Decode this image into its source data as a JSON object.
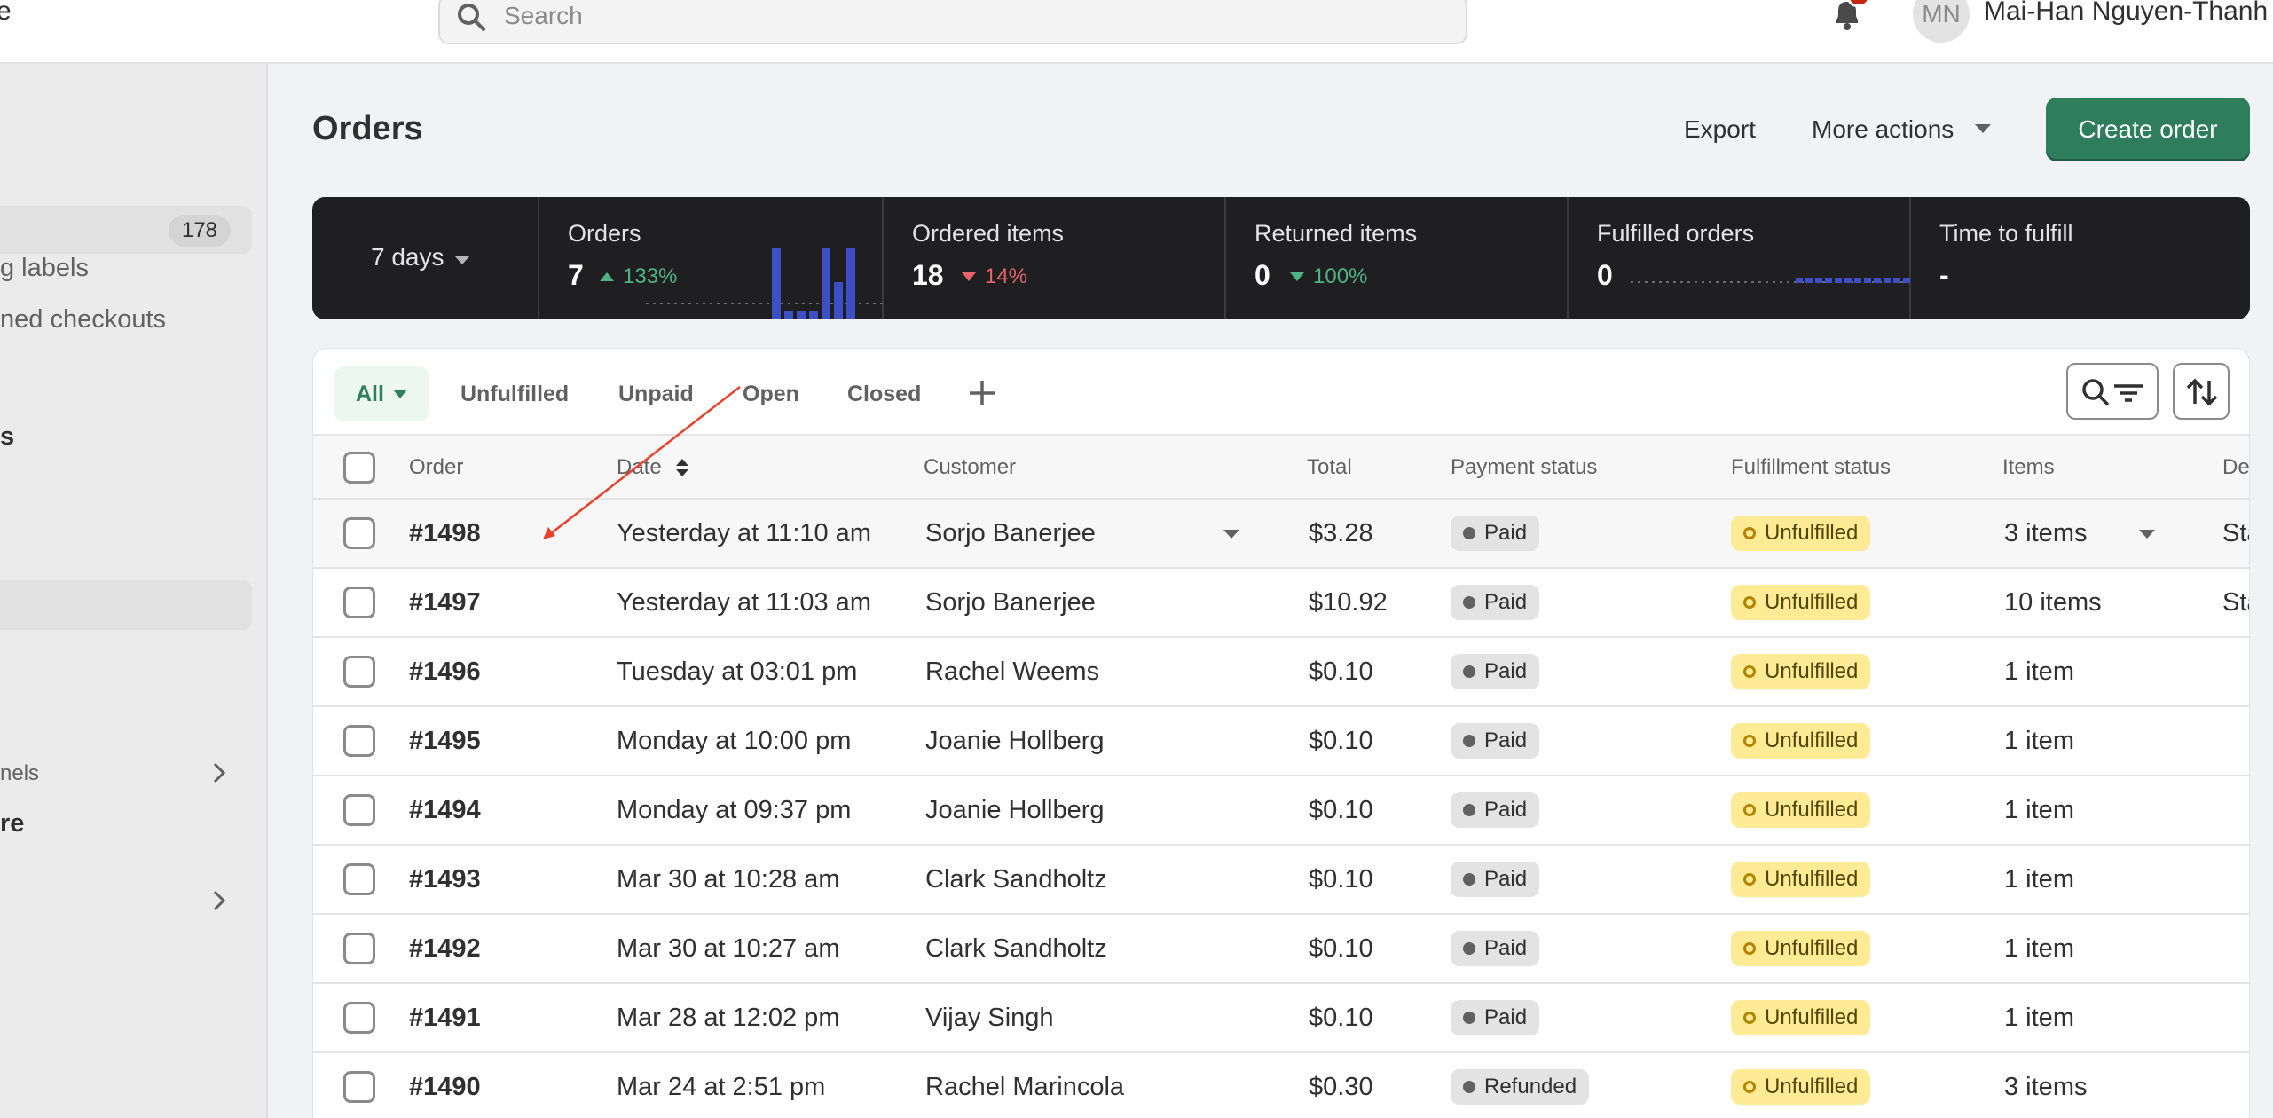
{
  "topbar": {
    "brand_fragment": "e",
    "search_placeholder": "Search",
    "avatar_initials": "MN",
    "user_name": "Mai-Han Nguyen-Thanh"
  },
  "sidebar": {
    "orders_count": "178",
    "items": [
      {
        "label": "g labels"
      },
      {
        "label": "ned checkouts"
      },
      {
        "label": "s"
      },
      {
        "label": "nels"
      },
      {
        "label": "re"
      }
    ]
  },
  "header": {
    "title": "Orders",
    "export_label": "Export",
    "more_actions_label": "More actions",
    "create_label": "Create order"
  },
  "metrics": {
    "range_label": "7 days",
    "cells": [
      {
        "label": "Orders",
        "value": "7",
        "delta": "133%",
        "trend": "up"
      },
      {
        "label": "Ordered items",
        "value": "18",
        "delta": "14%",
        "trend": "down-bad"
      },
      {
        "label": "Returned items",
        "value": "0",
        "delta": "100%",
        "trend": "down-good"
      },
      {
        "label": "Fulfilled orders",
        "value": "0",
        "delta": "",
        "trend": ""
      },
      {
        "label": "Time to fulfill",
        "value": "-",
        "delta": "",
        "trend": ""
      }
    ]
  },
  "tabs": [
    {
      "label": "All"
    },
    {
      "label": "Unfulfilled"
    },
    {
      "label": "Unpaid"
    },
    {
      "label": "Open"
    },
    {
      "label": "Closed"
    }
  ],
  "table": {
    "columns": [
      "Order",
      "Date",
      "Customer",
      "Total",
      "Payment status",
      "Fulfillment status",
      "Items",
      "De"
    ],
    "rows": [
      {
        "order": "#1498",
        "date": "Yesterday at 11:10 am",
        "customer": "Sorjo Banerjee",
        "total": "$3.28",
        "payment": "Paid",
        "fulfillment": "Unfulfilled",
        "items": "3 items",
        "delivery": "Sta"
      },
      {
        "order": "#1497",
        "date": "Yesterday at 11:03 am",
        "customer": "Sorjo Banerjee",
        "total": "$10.92",
        "payment": "Paid",
        "fulfillment": "Unfulfilled",
        "items": "10 items",
        "delivery": "Sta"
      },
      {
        "order": "#1496",
        "date": "Tuesday at 03:01 pm",
        "customer": "Rachel Weems",
        "total": "$0.10",
        "payment": "Paid",
        "fulfillment": "Unfulfilled",
        "items": "1 item",
        "delivery": ""
      },
      {
        "order": "#1495",
        "date": "Monday at 10:00 pm",
        "customer": "Joanie Hollberg",
        "total": "$0.10",
        "payment": "Paid",
        "fulfillment": "Unfulfilled",
        "items": "1 item",
        "delivery": ""
      },
      {
        "order": "#1494",
        "date": "Monday at 09:37 pm",
        "customer": "Joanie Hollberg",
        "total": "$0.10",
        "payment": "Paid",
        "fulfillment": "Unfulfilled",
        "items": "1 item",
        "delivery": ""
      },
      {
        "order": "#1493",
        "date": "Mar 30 at 10:28 am",
        "customer": "Clark Sandholtz",
        "total": "$0.10",
        "payment": "Paid",
        "fulfillment": "Unfulfilled",
        "items": "1 item",
        "delivery": ""
      },
      {
        "order": "#1492",
        "date": "Mar 30 at 10:27 am",
        "customer": "Clark Sandholtz",
        "total": "$0.10",
        "payment": "Paid",
        "fulfillment": "Unfulfilled",
        "items": "1 item",
        "delivery": ""
      },
      {
        "order": "#1491",
        "date": "Mar 28 at 12:02 pm",
        "customer": "Vijay Singh",
        "total": "$0.10",
        "payment": "Paid",
        "fulfillment": "Unfulfilled",
        "items": "1 item",
        "delivery": ""
      },
      {
        "order": "#1490",
        "date": "Mar 24 at 2:51 pm",
        "customer": "Rachel Marincola",
        "total": "$0.30",
        "payment": "Refunded",
        "fulfillment": "Unfulfilled",
        "items": "3 items",
        "delivery": ""
      }
    ]
  },
  "colors": {
    "primary": "#2e7d5c",
    "metrics_bg": "#1f1f22",
    "unfulfilled_badge": "#ffeb96",
    "paid_badge": "#e3e3e3",
    "annotation_arrow": "#e8412c"
  }
}
